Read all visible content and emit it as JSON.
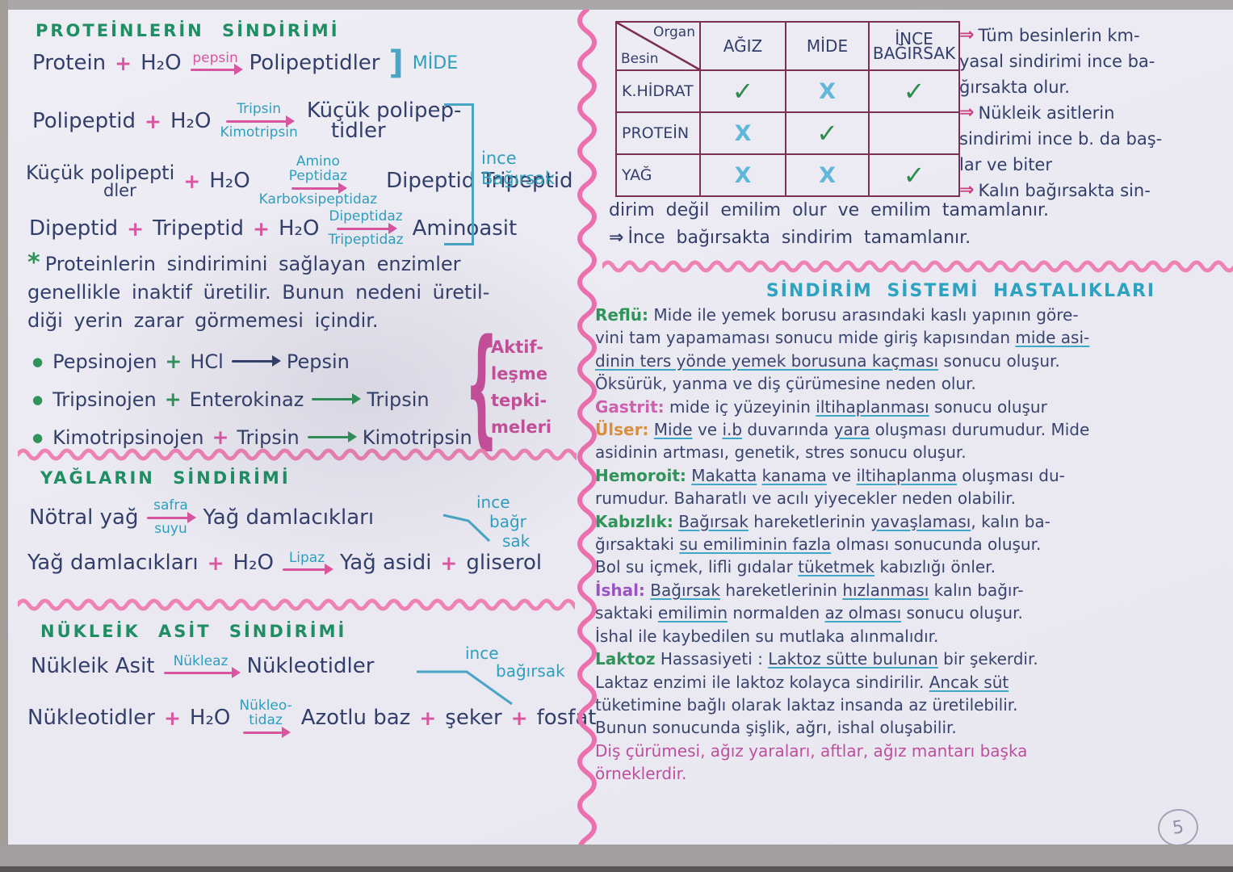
{
  "colors": {
    "ink": "#333f6b",
    "green_heading": "#1f8f63",
    "teal": "#2e9fbe",
    "pink": "#d8569f",
    "wave_pink": "#ee82b4",
    "table_border": "#7b2f55",
    "check_green": "#2f8a4d",
    "cross_blue": "#5fb8da",
    "disease_title_teal": "#2da3c2",
    "orange": "#d98f3e",
    "purple": "#9a53c4",
    "magenta": "#bd4f9e"
  },
  "sym": {
    "plus": "+",
    "star": "*",
    "bullet": "●",
    "brace": "{",
    "bracket": "]",
    "darrow": "⇒"
  },
  "protein": {
    "title": "PROTEİNLERİN  SİNDİRİMİ",
    "eq1": {
      "lhs": "Protein",
      "h2o": "H₂O",
      "enz": "pepsin",
      "rhs": "Polipeptidler",
      "organ": "MİDE"
    },
    "eq2": {
      "lhs": "Polipeptid",
      "h2o": "H₂O",
      "enz_top": "Tripsin",
      "enz_bot": "Kimotripsin",
      "rhs_top": "Küçük  polipep-",
      "rhs_bot": "tidler"
    },
    "eq3": {
      "lhs_top": "Küçük polipepti",
      "lhs_bot": "dler",
      "h2o": "H₂O",
      "enz_top1": "Amino",
      "enz_top2": "Peptidaz",
      "enz_bot": "Karboksipeptidaz",
      "rhs": "Dipeptid   Tripeptid"
    },
    "eq4": {
      "lhs_a": "Dipeptid",
      "lhs_b": "Tripeptid",
      "h2o": "H₂O",
      "enz_top": "Dipeptidaz",
      "enz_bot": "Tripeptidaz",
      "rhs": "Aminoasit"
    },
    "bracket_label": [
      "ince",
      "Bağırsak"
    ],
    "note_lines": [
      "Proteinlerin  sindirimini  sağlayan  enzimler",
      "genellikle  inaktif  üretilir.  Bunun  nedeni üretil-",
      "diği  yerin  zarar  görmemesi  içindir."
    ],
    "activation": [
      {
        "a": "Pepsinojen",
        "b": "HCl",
        "c": "Pepsin",
        "plus": "green",
        "arrow": "ink"
      },
      {
        "a": "Tripsinojen",
        "b": "Enterokinaz",
        "c": "Tripsin",
        "plus": "green",
        "arrow": "green"
      },
      {
        "a": "Kimotripsinojen",
        "b": "Tripsin",
        "c": "Kimotripsin",
        "plus": "pink",
        "arrow": "green"
      }
    ],
    "brace_lines": [
      "Aktif-",
      "leşme",
      "tepki-",
      "meleri"
    ]
  },
  "fats": {
    "title": "YAĞLARIN  SİNDİRİMİ",
    "eq1": {
      "lhs": "Nötral yağ",
      "enz_top": "safra",
      "enz_bot": "suyu",
      "rhs": "Yağ  damlacıkları",
      "organ": [
        "ince",
        "bağr",
        "sak"
      ]
    },
    "eq2": {
      "lhs": "Yağ damlacıkları",
      "h2o": "H₂O",
      "enz": "Lipaz",
      "rhs_a": "Yağ asidi",
      "rhs_b": "gliserol"
    }
  },
  "nucleic": {
    "title": "NÜKLEİK  ASİT  SİNDİRİMİ",
    "eq1": {
      "lhs": "Nükleik  Asit",
      "enz": "Nükleaz",
      "rhs": "Nükleotidler",
      "organ": [
        "ince",
        "bağırsak"
      ]
    },
    "eq2": {
      "lhs": "Nükleotidler",
      "h2o": "H₂O",
      "enz_top": "Nükleo-",
      "enz_bot": "tidaz",
      "rhs_a": "Azotlu baz",
      "rhs_b": "şeker",
      "rhs_c": "fosfat"
    }
  },
  "table": {
    "corner_top": "Organ",
    "corner_bottom": "Besin",
    "col1": "AĞIZ",
    "col2": "MİDE",
    "col3": [
      "İNCE",
      "BAĞIRSAK"
    ],
    "rows": [
      {
        "label": "K.HİDRAT",
        "cells": [
          "check",
          "cross",
          "check"
        ]
      },
      {
        "label": "PROTEİN",
        "cells": [
          "cross",
          "check",
          "none"
        ]
      },
      {
        "label": "YAĞ",
        "cells": [
          "cross",
          "cross",
          "check"
        ]
      }
    ],
    "check": "✓",
    "cross": "X"
  },
  "side_notes": [
    {
      "a": true,
      "t": "Tüm  besinlerin  km-"
    },
    {
      "a": false,
      "t": "yasal  sindirimi  ince ba-"
    },
    {
      "a": false,
      "t": "ğırsakta  olur."
    },
    {
      "a": true,
      "t": "Nükleik  asitlerin"
    },
    {
      "a": false,
      "t": "sindirimi  ince b. da baş-"
    },
    {
      "a": false,
      "t": "lar ve biter"
    },
    {
      "a": true,
      "t": "Kalın  bağırsakta  sin-"
    }
  ],
  "below_notes": [
    {
      "a": false,
      "t": "dirim  değil  emilim  olur ve   emilim   tamamlanır.",
      "dark": false
    },
    {
      "a": true,
      "t": "İnce  bağırsakta  sindirim  tamamlanır.",
      "dark": true
    }
  ],
  "diseases": {
    "title": "SİNDİRİM  SİSTEMİ  HASTALIKLARI",
    "lines": [
      [
        {
          "t": "Reflü:",
          "c": "green"
        },
        {
          "t": " Mide ile yemek borusu arasındaki kaslı yapının göre-",
          "c": "ink"
        }
      ],
      [
        {
          "t": "vini tam yapamaması sonucu mide giriş kapısından ",
          "c": "ink"
        },
        {
          "t": "mide asi-",
          "c": "inku"
        }
      ],
      [
        {
          "t": "dinin ters yönde yemek borusuna kaçması",
          "c": "inku"
        },
        {
          "t": " sonucu oluşur.",
          "c": "ink"
        }
      ],
      [
        {
          "t": "Öksürük, yanma ve diş çürümesine neden olur.",
          "c": "ink"
        }
      ],
      [
        {
          "t": "Gastrit:",
          "c": "pink"
        },
        {
          "t": " mide iç yüzeyinin ",
          "c": "ink"
        },
        {
          "t": "iltihaplanması",
          "c": "inku"
        },
        {
          "t": " sonucu oluşur",
          "c": "ink"
        }
      ],
      [
        {
          "t": "Ülser:",
          "c": "orange"
        },
        {
          "t": " ",
          "c": "ink"
        },
        {
          "t": "Mide",
          "c": "inku"
        },
        {
          "t": " ve ",
          "c": "ink"
        },
        {
          "t": "i.b",
          "c": "inku"
        },
        {
          "t": " duvarında ",
          "c": "ink"
        },
        {
          "t": "yara",
          "c": "inku"
        },
        {
          "t": " oluşması durumudur. Mide",
          "c": "ink"
        }
      ],
      [
        {
          "t": "asidinin artması, genetik, stres sonucu oluşur.",
          "c": "ink"
        }
      ],
      [
        {
          "t": "Hemoroit:",
          "c": "green"
        },
        {
          "t": " ",
          "c": "ink"
        },
        {
          "t": "Makatta",
          "c": "inku"
        },
        {
          "t": " ",
          "c": "ink"
        },
        {
          "t": "kanama",
          "c": "inku"
        },
        {
          "t": " ve ",
          "c": "ink"
        },
        {
          "t": "iltihaplanma",
          "c": "inku"
        },
        {
          "t": " oluşması du-",
          "c": "ink"
        }
      ],
      [
        {
          "t": "rumudur. Baharatlı ve acılı yiyecekler neden olabilir.",
          "c": "ink"
        }
      ],
      [
        {
          "t": "Kabızlık:",
          "c": "green"
        },
        {
          "t": " ",
          "c": "ink"
        },
        {
          "t": "Bağırsak",
          "c": "inku"
        },
        {
          "t": " hareketlerinin ",
          "c": "ink"
        },
        {
          "t": "yavaşlaması",
          "c": "inku"
        },
        {
          "t": ", kalın ba-",
          "c": "ink"
        }
      ],
      [
        {
          "t": "ğırsaktaki ",
          "c": "ink"
        },
        {
          "t": "su emiliminin fazla",
          "c": "inku"
        },
        {
          "t": " olması sonucunda oluşur.",
          "c": "ink"
        }
      ],
      [
        {
          "t": "Bol su içmek, lifli gıdalar ",
          "c": "ink"
        },
        {
          "t": "tüketmek",
          "c": "inku"
        },
        {
          "t": " kabızlığı önler.",
          "c": "ink"
        }
      ],
      [
        {
          "t": "İshal:",
          "c": "purple"
        },
        {
          "t": " ",
          "c": "ink"
        },
        {
          "t": "Bağırsak",
          "c": "inku"
        },
        {
          "t": " hareketlerinin ",
          "c": "ink"
        },
        {
          "t": "hızlanması",
          "c": "inku"
        },
        {
          "t": " kalın bağır-",
          "c": "ink"
        }
      ],
      [
        {
          "t": "saktaki ",
          "c": "ink"
        },
        {
          "t": "emilimin",
          "c": "inku"
        },
        {
          "t": " normalden ",
          "c": "ink"
        },
        {
          "t": "az olması",
          "c": "inku"
        },
        {
          "t": " sonucu oluşur.",
          "c": "ink"
        }
      ],
      [
        {
          "t": "İshal ile kaybedilen su mutlaka alınmalıdır.",
          "c": "ink"
        }
      ],
      [
        {
          "t": "Laktoz",
          "c": "green"
        },
        {
          "t": " Hassasiyeti : ",
          "c": "ink"
        },
        {
          "t": "Laktoz sütte bulunan",
          "c": "inku"
        },
        {
          "t": " bir şekerdir.",
          "c": "ink"
        }
      ],
      [
        {
          "t": "Laktaz enzimi ile laktoz kolayca sindirilir. ",
          "c": "ink"
        },
        {
          "t": "Ancak süt",
          "c": "inku"
        }
      ],
      [
        {
          "t": "tüketimine bağlı olarak laktaz insanda az üretilebilir.",
          "c": "ink"
        }
      ],
      [
        {
          "t": "Bunun sonucunda şişlik, ağrı, ishal oluşabilir.",
          "c": "ink"
        }
      ],
      [
        {
          "t": "Diş çürümesi, ağız yaraları, aftlar, ağız mantarı başka",
          "c": "magenta"
        }
      ],
      [
        {
          "t": "örneklerdir.",
          "c": "magenta"
        }
      ]
    ]
  },
  "page_number": "5"
}
